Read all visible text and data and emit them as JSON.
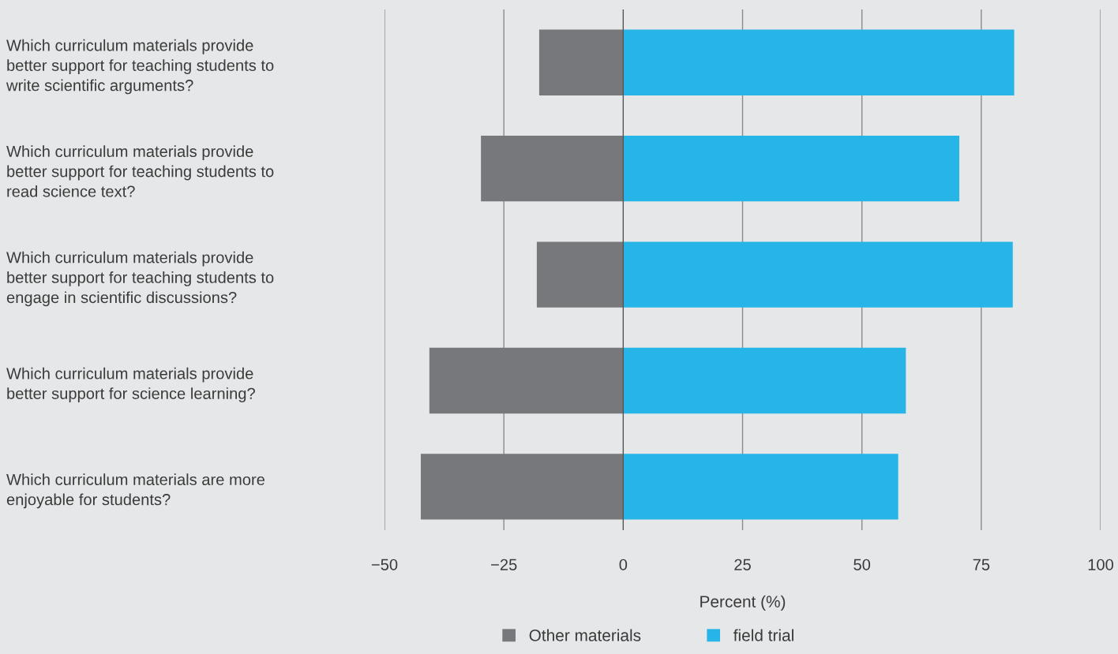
{
  "chart_data": {
    "type": "bar",
    "stacked": true,
    "orientation": "horizontal",
    "xlabel": "Percent (%)",
    "categories": [
      "Which curriculum materials provide\nbetter support for teaching students to\nwrite scientific arguments?",
      "Which curriculum materials provide\nbetter support for teaching students to\nread science text?",
      "Which curriculum materials provide\nbetter support for teaching students to\nengage in scientific discussions?",
      "Which curriculum materials provide\nbetter support for science learning?",
      "Which curriculum materials are more\nenjoyable for students?"
    ],
    "series": [
      {
        "name": "Other materials",
        "color": "#77787b",
        "values": [
          -17.6,
          -29.8,
          -18.1,
          -40.6,
          -42.4
        ]
      },
      {
        "name": "field trial",
        "color": "#27b5e8",
        "values": [
          81.9,
          70.4,
          81.6,
          59.2,
          57.6
        ]
      }
    ],
    "xlim": [
      -50,
      100
    ],
    "xticks": [
      {
        "value": -50,
        "label": "−50"
      },
      {
        "value": -25,
        "label": "−25"
      },
      0,
      25,
      50,
      75,
      100
    ],
    "grid": "x",
    "legend": "bottom"
  }
}
